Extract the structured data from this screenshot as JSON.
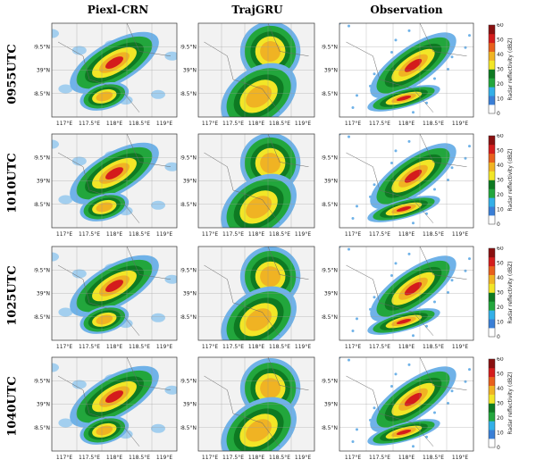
{
  "columns": [
    "Piexl-CRN",
    "TrajGRU",
    "Observation"
  ],
  "rows": [
    "0955UTC",
    "1010UTC",
    "1025UTC",
    "1040UTC"
  ],
  "axes": {
    "x_ticks": [
      "117°E",
      "117.5°E",
      "118°E",
      "118.5°E",
      "119°E"
    ],
    "y_ticks": [
      "39.5°N",
      "39°N",
      "38.5°N"
    ]
  },
  "colorbar": {
    "label": "Radar reflectivity (dBZ)",
    "ticks": [
      "60",
      "50",
      "40",
      "30",
      "20",
      "10",
      "0"
    ],
    "colors": [
      "#ffffff",
      "#3a7fd6",
      "#33b0e8",
      "#22a63c",
      "#0e7a22",
      "#f2e627",
      "#f0b323",
      "#e8601c",
      "#d41c1c",
      "#8a1010"
    ]
  }
}
